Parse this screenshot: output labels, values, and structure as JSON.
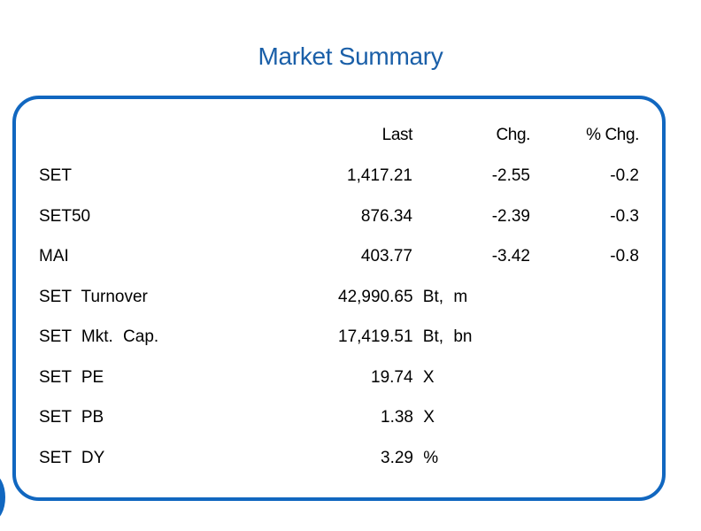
{
  "title": "Market Summary",
  "header": {
    "last": "Last",
    "chg": "Chg.",
    "pct_chg": "% Chg."
  },
  "indices": [
    {
      "label": "SET",
      "last": "1,417.21",
      "chg": "-2.55",
      "pct_chg": "-0.2"
    },
    {
      "label": "SET50",
      "last": "876.34",
      "chg": "-2.39",
      "pct_chg": "-0.3"
    },
    {
      "label": "MAI",
      "last": "403.77",
      "chg": "-3.42",
      "pct_chg": "-0.8"
    }
  ],
  "stats": [
    {
      "label": "SET Turnover",
      "value": "42,990.65 Bt, m"
    },
    {
      "label": "SET Mkt. Cap.",
      "value": "17,419.51 Bt, bn"
    },
    {
      "label": "SET PE",
      "value": "19.74 X"
    },
    {
      "label": "SET PB",
      "value": "1.38 X"
    },
    {
      "label": "SET DY",
      "value": "3.29 %"
    }
  ],
  "colors": {
    "accent": "#1167c0",
    "title": "#1a5fa8"
  }
}
